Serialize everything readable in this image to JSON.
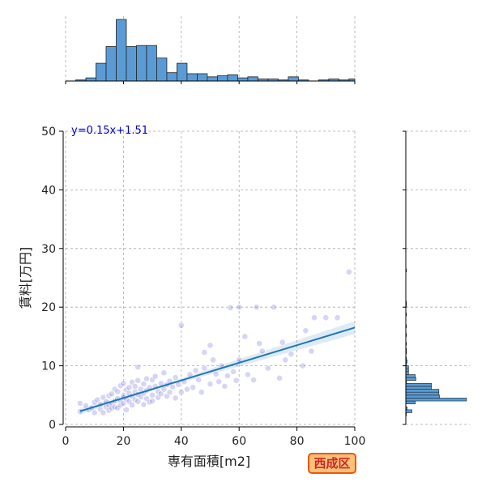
{
  "chart_data": {
    "type": "scatter",
    "xlabel": "専有面積[m2]",
    "ylabel": "賃料[万円]",
    "xlim": [
      0,
      100
    ],
    "ylim": [
      0,
      50
    ],
    "x_ticks": [
      0,
      20,
      40,
      60,
      80,
      100
    ],
    "y_ticks": [
      0,
      10,
      20,
      30,
      40,
      50
    ],
    "grid": true,
    "regression": {
      "label": "y=0.15x+1.51",
      "slope": 0.15,
      "intercept": 1.51,
      "x_range": [
        5,
        100
      ]
    },
    "points": [
      [
        5,
        2.2
      ],
      [
        5,
        3.6
      ],
      [
        7,
        3.2
      ],
      [
        8,
        2.5
      ],
      [
        9,
        2.8
      ],
      [
        10,
        3.8
      ],
      [
        10,
        2.0
      ],
      [
        11,
        4.2
      ],
      [
        12,
        2.6
      ],
      [
        12,
        3.4
      ],
      [
        13,
        4.6
      ],
      [
        13,
        2.0
      ],
      [
        14,
        3.0
      ],
      [
        14,
        3.9
      ],
      [
        15,
        2.4
      ],
      [
        15,
        4.9
      ],
      [
        15,
        3.3
      ],
      [
        16,
        5.2
      ],
      [
        16,
        3.6
      ],
      [
        16,
        2.8
      ],
      [
        17,
        4.0
      ],
      [
        17,
        6.0
      ],
      [
        17,
        3.0
      ],
      [
        18,
        2.8
      ],
      [
        18,
        4.4
      ],
      [
        18,
        5.6
      ],
      [
        19,
        3.3
      ],
      [
        19,
        6.6
      ],
      [
        19,
        4.1
      ],
      [
        20,
        5.0
      ],
      [
        20,
        7.0
      ],
      [
        20,
        3.6
      ],
      [
        20,
        4.6
      ],
      [
        21,
        2.5
      ],
      [
        21,
        5.9
      ],
      [
        21,
        4.3
      ],
      [
        22,
        3.9
      ],
      [
        22,
        6.3
      ],
      [
        22,
        5.3
      ],
      [
        23,
        4.8
      ],
      [
        23,
        7.2
      ],
      [
        23,
        3.3
      ],
      [
        24,
        5.6
      ],
      [
        24,
        4.2
      ],
      [
        24,
        6.5
      ],
      [
        25,
        3.9
      ],
      [
        25,
        7.5
      ],
      [
        25,
        5.1
      ],
      [
        25,
        9.8
      ],
      [
        26,
        4.7
      ],
      [
        26,
        6.0
      ],
      [
        27,
        5.3
      ],
      [
        27,
        3.4
      ],
      [
        27,
        6.9
      ],
      [
        28,
        4.4
      ],
      [
        28,
        7.8
      ],
      [
        28,
        5.8
      ],
      [
        29,
        3.8
      ],
      [
        29,
        6.3
      ],
      [
        30,
        5.0
      ],
      [
        30,
        7.6
      ],
      [
        30,
        4.0
      ],
      [
        31,
        6.5
      ],
      [
        31,
        8.2
      ],
      [
        32,
        5.6
      ],
      [
        32,
        4.6
      ],
      [
        33,
        7.0
      ],
      [
        33,
        5.2
      ],
      [
        34,
        6.0
      ],
      [
        34,
        8.8
      ],
      [
        35,
        4.8
      ],
      [
        35,
        6.8
      ],
      [
        36,
        5.5
      ],
      [
        36,
        7.4
      ],
      [
        37,
        6.4
      ],
      [
        38,
        8.0
      ],
      [
        38,
        4.5
      ],
      [
        39,
        6.8
      ],
      [
        40,
        5.5
      ],
      [
        40,
        16.9
      ],
      [
        41,
        7.3
      ],
      [
        42,
        6.0
      ],
      [
        43,
        8.5
      ],
      [
        44,
        6.3
      ],
      [
        45,
        9.2
      ],
      [
        46,
        7.6
      ],
      [
        47,
        5.5
      ],
      [
        48,
        12.3
      ],
      [
        48,
        9.6
      ],
      [
        50,
        13.5
      ],
      [
        50,
        6.9
      ],
      [
        51,
        11.0
      ],
      [
        52,
        8.6
      ],
      [
        53,
        7.3
      ],
      [
        54,
        10.0
      ],
      [
        55,
        6.5
      ],
      [
        56,
        8.3
      ],
      [
        57,
        19.9
      ],
      [
        58,
        9.0
      ],
      [
        59,
        7.5
      ],
      [
        60,
        11.0
      ],
      [
        60,
        20.0
      ],
      [
        62,
        15.0
      ],
      [
        63,
        8.5
      ],
      [
        65,
        7.6
      ],
      [
        66,
        20.0
      ],
      [
        67,
        13.8
      ],
      [
        68,
        12.5
      ],
      [
        70,
        9.6
      ],
      [
        72,
        20.0
      ],
      [
        74,
        7.9
      ],
      [
        75,
        14.0
      ],
      [
        76,
        11.0
      ],
      [
        78,
        12.0
      ],
      [
        82,
        10.0
      ],
      [
        83,
        16.0
      ],
      [
        85,
        12.5
      ],
      [
        86,
        18.2
      ],
      [
        90,
        18.2
      ],
      [
        94,
        18.2
      ],
      [
        98,
        26.0
      ]
    ],
    "top_histogram": {
      "bin_edges": [
        0,
        3.5,
        7,
        10.5,
        14,
        17.5,
        21,
        24.5,
        28,
        31.5,
        35,
        38.5,
        42,
        45.5,
        49,
        52.5,
        56,
        59.5,
        63,
        66.5,
        70,
        73.5,
        77,
        80.5,
        84,
        87.5,
        91,
        94.5,
        98,
        101.5
      ],
      "counts": [
        0,
        1,
        3,
        17,
        33,
        59,
        33,
        34,
        34,
        22,
        8,
        17,
        7,
        7,
        4,
        5,
        6,
        3,
        4,
        2,
        2,
        1,
        4,
        1,
        0,
        1,
        2,
        1,
        2,
        1
      ]
    },
    "right_histogram": {
      "bin_edges": [
        0,
        0.5,
        1,
        1.5,
        2,
        2.5,
        3,
        3.5,
        4,
        4.5,
        5,
        5.5,
        6,
        6.5,
        7,
        7.5,
        8,
        8.5,
        9,
        9.5,
        10,
        10.5,
        11,
        11.5,
        12,
        12.5,
        13,
        13.5,
        14,
        14.5,
        15,
        15.5,
        16,
        16.5,
        17,
        17.5,
        18,
        18.5,
        19,
        19.5,
        20,
        20.5,
        21,
        21.5,
        22,
        22.5,
        23,
        23.5,
        24,
        24.5,
        25,
        25.5,
        26,
        26.5
      ],
      "counts": [
        0,
        0,
        0,
        1,
        9,
        2,
        0,
        14,
        90,
        50,
        49,
        49,
        38,
        38,
        1,
        15,
        14,
        4,
        4,
        4,
        1,
        2,
        1,
        0,
        1,
        1,
        0,
        1,
        0,
        0,
        1,
        0,
        0,
        1,
        0,
        0,
        0,
        1,
        0,
        0,
        1,
        1,
        0,
        0,
        0,
        0,
        0,
        0,
        0,
        0,
        0,
        0,
        1,
        0
      ]
    }
  },
  "badge": {
    "label": "西成区"
  },
  "colors": {
    "hist": "#5a9bd5",
    "scatter": "#6a6ad6",
    "line": "#1f77b4",
    "label": "#0000cc",
    "badge_border": "#e8590c",
    "badge_bg": "#ffc078",
    "badge_text": "#c92a2a"
  }
}
